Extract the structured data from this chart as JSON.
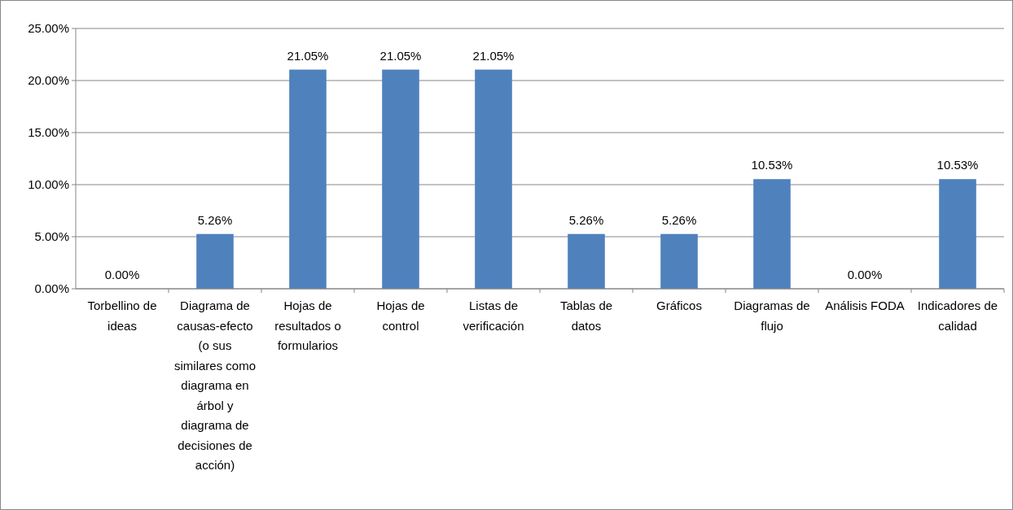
{
  "chart_data": {
    "type": "bar",
    "categories": [
      "Torbellino de ideas",
      "Diagrama de causas-efecto (o sus similares como diagrama en árbol y diagrama de decisiones de acción)",
      "Hojas de resultados o formularios",
      "Hojas de control",
      "Listas de verificación",
      "Tablas de datos",
      "Gráficos",
      "Diagramas de flujo",
      "Análisis FODA",
      "Indicadores de calidad"
    ],
    "values": [
      0,
      5.26,
      21.05,
      21.05,
      21.05,
      5.26,
      5.26,
      10.53,
      0,
      10.53
    ],
    "value_labels": [
      "0.00%",
      "5.26%",
      "21.05%",
      "21.05%",
      "21.05%",
      "5.26%",
      "5.26%",
      "10.53%",
      "0.00%",
      "10.53%"
    ],
    "color": "#4f81bd",
    "ylim": [
      0,
      25
    ],
    "yticks": [
      {
        "value": 0,
        "label": "0.00%"
      },
      {
        "value": 5,
        "label": "5.00%"
      },
      {
        "value": 10,
        "label": "10.00%"
      },
      {
        "value": 15,
        "label": "15.00%"
      },
      {
        "value": 20,
        "label": "20.00%"
      },
      {
        "value": 25,
        "label": "25.00%"
      }
    ],
    "grid": "y"
  }
}
